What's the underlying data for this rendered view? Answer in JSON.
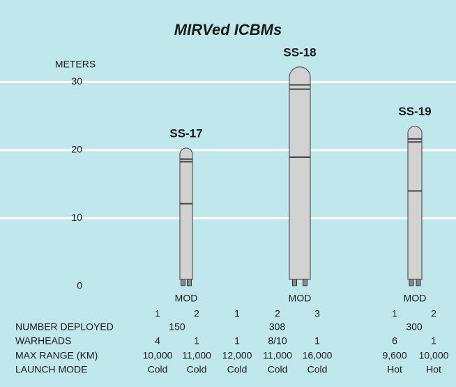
{
  "chart_data": {
    "type": "bar",
    "title": "MIRVed ICBMs",
    "y_label": "METERS",
    "categories": [
      "SS-17",
      "SS-18",
      "SS-19"
    ],
    "values": [
      20.3,
      32.2,
      23.5
    ],
    "color": "#d2d2d2",
    "ylim": [
      0,
      33
    ],
    "yticks": [
      0,
      10,
      20,
      30
    ],
    "grid": true,
    "mod_label": "MOD",
    "row_labels": [
      "NUMBER DEPLOYED",
      "WARHEADS",
      "MAX RANGE (KM)",
      "LAUNCH MODE"
    ],
    "missiles": [
      {
        "deployed": "150",
        "mods": [
          {
            "mod": "1",
            "warheads": "4",
            "max_range": "10,000",
            "launch_mode": "Cold"
          },
          {
            "mod": "2",
            "warheads": "1",
            "max_range": "11,000",
            "launch_mode": "Cold"
          }
        ]
      },
      {
        "deployed": "308",
        "mods": [
          {
            "mod": "1",
            "warheads": "1",
            "max_range": "12,000",
            "launch_mode": "Cold"
          },
          {
            "mod": "2",
            "warheads": "8/10",
            "max_range": "11,000",
            "launch_mode": "Cold"
          },
          {
            "mod": "3",
            "warheads": "1",
            "max_range": "16,000",
            "launch_mode": "Cold"
          }
        ]
      },
      {
        "deployed": "300",
        "mods": [
          {
            "mod": "1",
            "warheads": "6",
            "max_range": "9,600",
            "launch_mode": "Hot"
          },
          {
            "mod": "2",
            "warheads": "1",
            "max_range": "10,000",
            "launch_mode": "Hot"
          }
        ]
      }
    ]
  }
}
